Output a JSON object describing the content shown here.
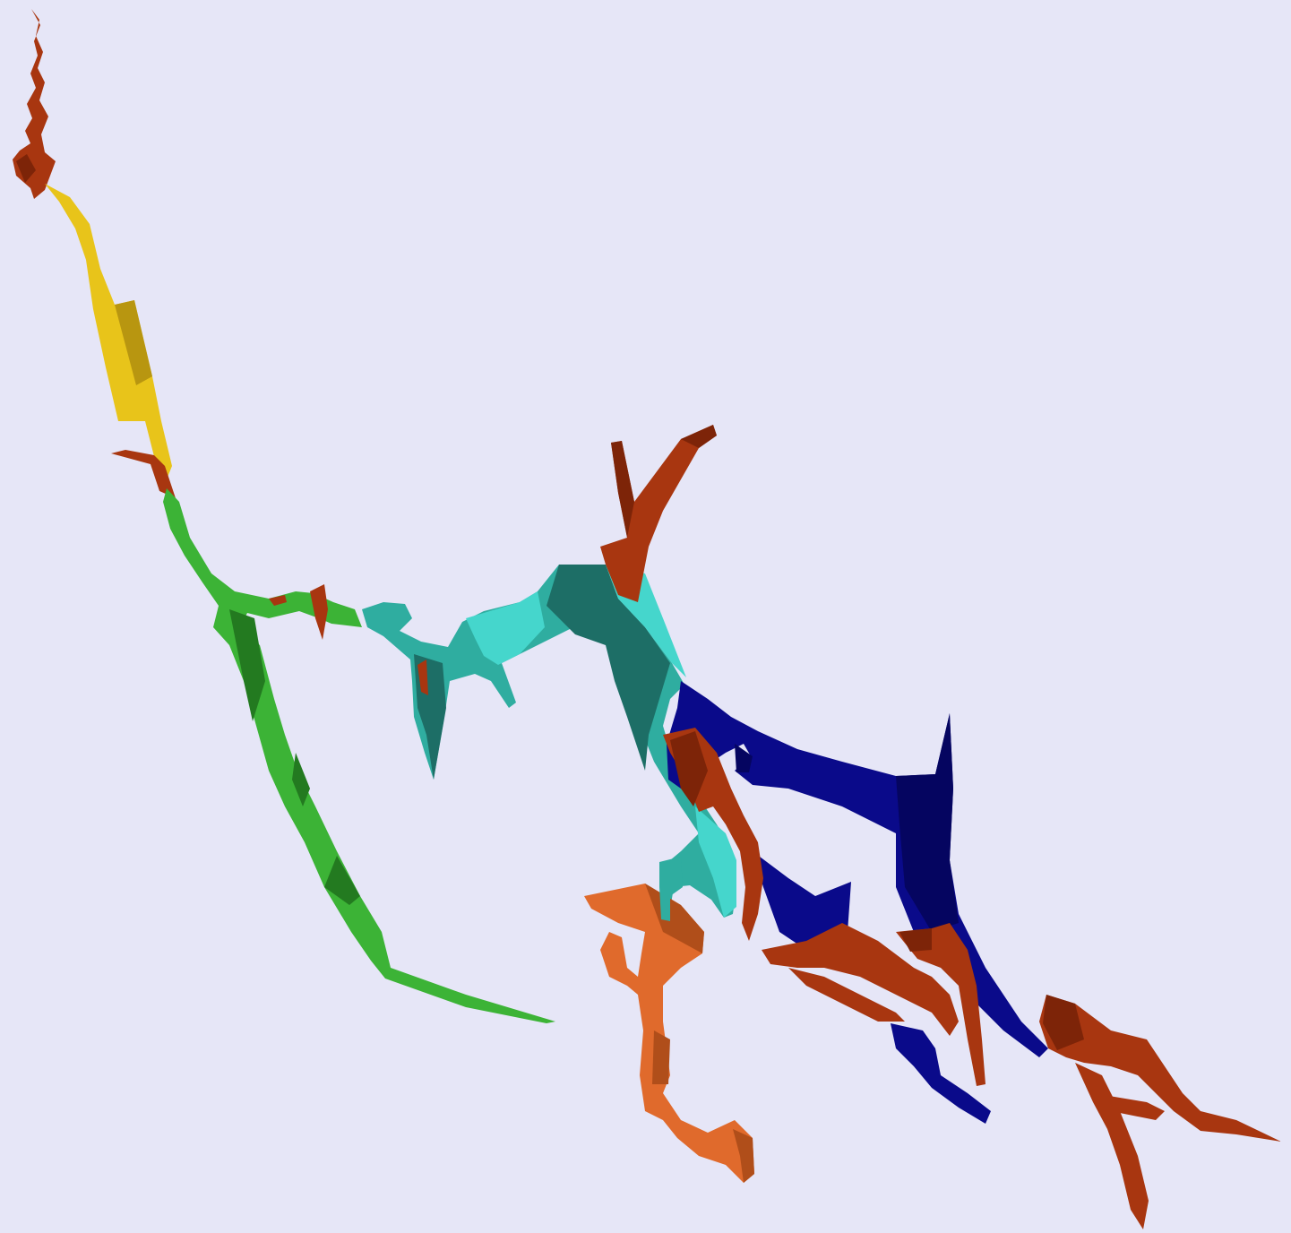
{
  "scene": {
    "background": "#e6e6f7",
    "colors": {
      "rust": "#a83610",
      "rust_dark": "#7d2408",
      "orange": "#e06a2c",
      "orange_dark": "#b04e1a",
      "yellow": "#e8c41a",
      "yellow_dark": "#b89610",
      "green": "#3cb336",
      "green_dark": "#237a20",
      "teal": "#2fada0",
      "teal_dark": "#1d6e66",
      "teal_light": "#45d6cc",
      "navy": "#0a0a8a",
      "navy_dark": "#050560"
    }
  }
}
